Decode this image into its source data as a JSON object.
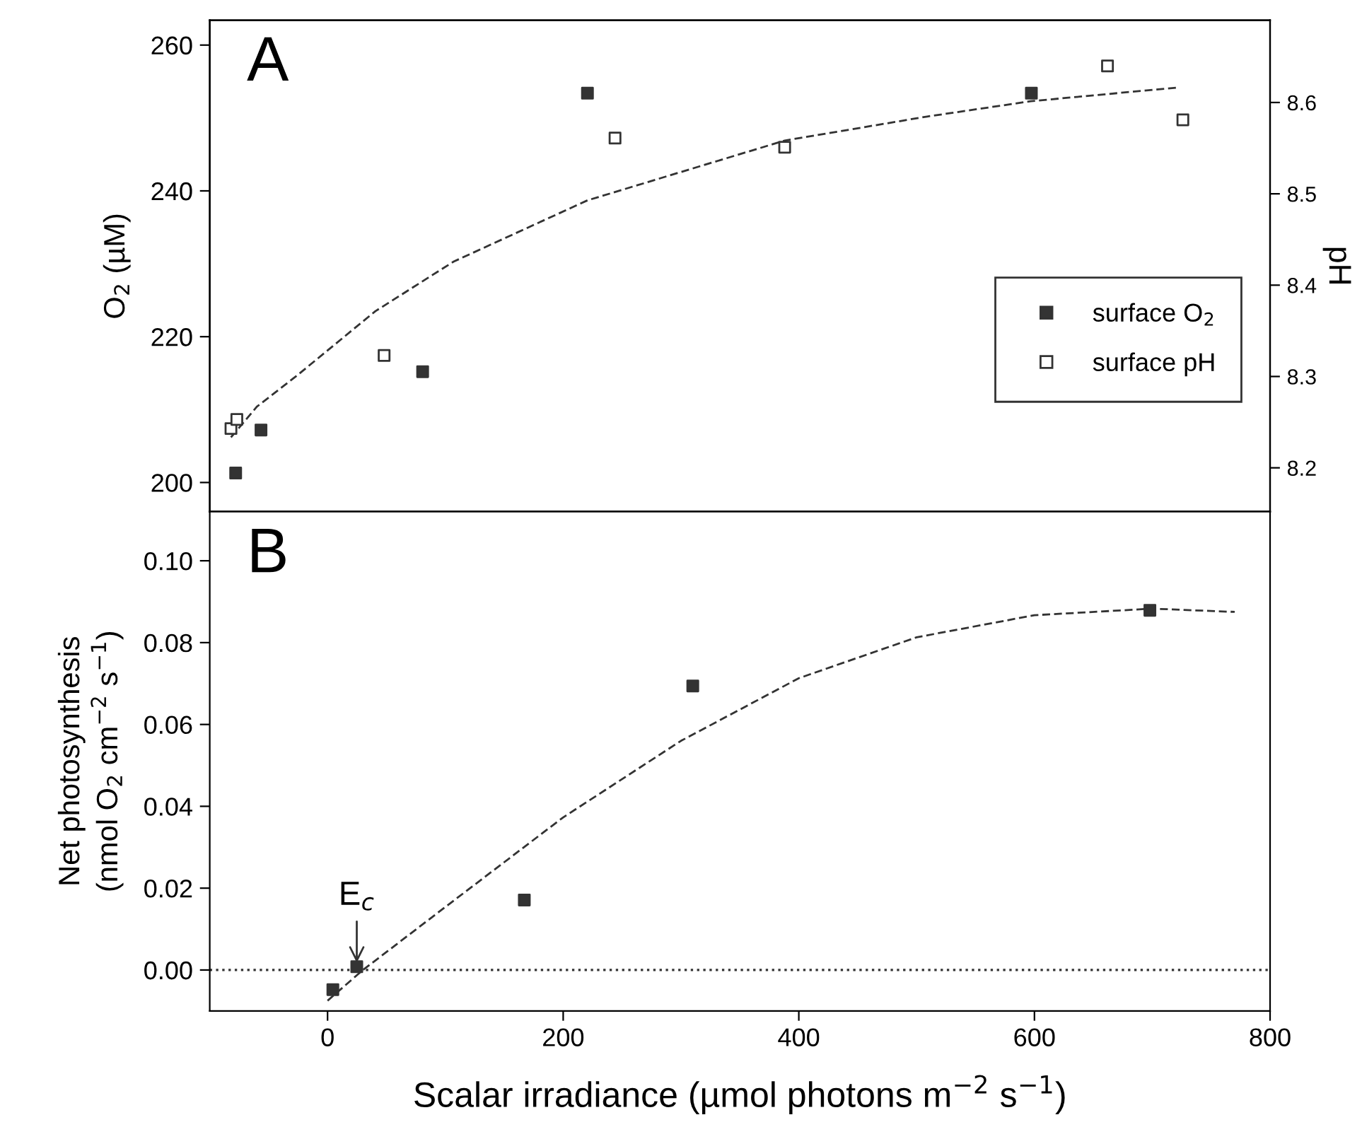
{
  "chart_data": [
    {
      "type": "scatter",
      "title": "A",
      "ylabel": "O$_{2}$ (µM)",
      "y2label": "pH",
      "xlim": [
        -100,
        800
      ],
      "ylim": [
        196,
        263.4
      ],
      "yticks": [
        200,
        220,
        240,
        260
      ],
      "y2lim": [
        8.152,
        8.69
      ],
      "y2ticks": [
        8.2,
        8.3,
        8.4,
        8.5,
        8.6
      ],
      "tick_labels": "y",
      "legend": "right",
      "grid": false,
      "marker": "square",
      "series": [
        {
          "name": "surface O$_{2}$",
          "color": "#333333",
          "x": [
            -78,
            -56.5,
            80.7,
            220.6,
            597.4
          ],
          "values": [
            201.3,
            207.2,
            215.2,
            253.4,
            253.4
          ]
        },
        {
          "name": "surface pH",
          "color": "#ffffff",
          "axis": "y2",
          "x": [
            -82,
            -77,
            48,
            244,
            388,
            662,
            726
          ],
          "values": [
            8.243,
            8.253,
            8.323,
            8.561,
            8.551,
            8.64,
            8.581
          ]
        },
        {
          "type": "line",
          "color": "#333333",
          "line_style": "dashed",
          "marker": "none",
          "x": [
            -82,
            -60,
            -26.5,
            40.6,
            107,
            220.6,
            388,
            509,
            597,
            723
          ],
          "values": [
            206.2,
            210.4,
            214.6,
            223.5,
            230.3,
            238.7,
            246.9,
            250.2,
            252.3,
            254.2
          ]
        }
      ]
    },
    {
      "type": "scatter",
      "title": "B",
      "xlabel": "Scalar irradiance (µmol photons m$^{−2}$ s$^{−1}$)",
      "ylabel": "Net photosynthesis\n(nmol O$_{2}$ cm$^{−2}$ s$^{−1}$)",
      "xlim": [
        -100,
        800
      ],
      "xticks": [
        0,
        200,
        400,
        600,
        800
      ],
      "ylim": [
        -0.01,
        0.112
      ],
      "yticks": [
        {
          "value": 0,
          "label": "0.00"
        },
        {
          "value": 0.02,
          "label": "0.02"
        },
        {
          "value": 0.04,
          "label": "0.04"
        },
        {
          "value": 0.06,
          "label": "0.06"
        },
        {
          "value": 0.08,
          "label": "0.08"
        },
        {
          "value": 0.1,
          "label": "0.10"
        }
      ],
      "grid": false,
      "marker": "square",
      "ref_lines": [
        {
          "axis": "y",
          "value": 0,
          "line_style": "dotted",
          "color": "#333333"
        }
      ],
      "annotations": [
        {
          "text": "E$_{c}$",
          "x": 24.8,
          "y": 0.0008
        }
      ],
      "series": [
        {
          "color": "#333333",
          "x": [
            4.5,
            24.8,
            167,
            310,
            698
          ],
          "values": [
            -0.0048,
            0.0008,
            0.0171,
            0.0694,
            0.0879
          ]
        },
        {
          "type": "line",
          "color": "#333333",
          "line_style": "dashed",
          "marker": "none",
          "x": [
            0,
            30,
            100,
            200,
            300,
            400,
            500,
            600,
            700,
            770
          ],
          "values": [
            -0.0075,
            0,
            0.0154,
            0.0373,
            0.056,
            0.0713,
            0.0813,
            0.0867,
            0.0883,
            0.0875
          ]
        }
      ]
    }
  ]
}
